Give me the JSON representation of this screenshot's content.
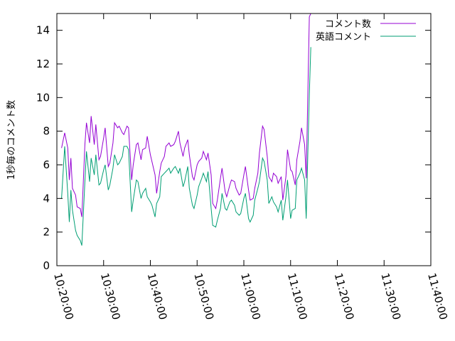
{
  "chart_data": {
    "type": "line",
    "title": "",
    "xlabel": "",
    "ylabel": "1秒毎のコメント数",
    "xlim": [
      "10:20:00",
      "11:40:00"
    ],
    "ylim": [
      0,
      15
    ],
    "x_ticks": [
      "10:20:00",
      "10:30:00",
      "10:40:00",
      "10:50:00",
      "11:00:00",
      "11:10:00",
      "11:20:00",
      "11:30:00",
      "11:40:00"
    ],
    "y_ticks": [
      0,
      2,
      4,
      6,
      8,
      10,
      12,
      14
    ],
    "grid": false,
    "legend_position": "top-right",
    "series": [
      {
        "name": "コメント数",
        "color": "#9400d3",
        "points": [
          [
            "10:21:00",
            7.0
          ],
          [
            "10:21:40",
            7.9
          ],
          [
            "10:22:20",
            7.0
          ],
          [
            "10:22:40",
            5.1
          ],
          [
            "10:23:00",
            6.4
          ],
          [
            "10:23:20",
            4.6
          ],
          [
            "10:24:00",
            4.2
          ],
          [
            "10:24:20",
            3.5
          ],
          [
            "10:25:00",
            3.4
          ],
          [
            "10:25:20",
            2.9
          ],
          [
            "10:26:00",
            7.2
          ],
          [
            "10:26:20",
            8.5
          ],
          [
            "10:27:00",
            7.3
          ],
          [
            "10:27:20",
            8.9
          ],
          [
            "10:28:00",
            7.2
          ],
          [
            "10:28:20",
            8.4
          ],
          [
            "10:29:00",
            6.3
          ],
          [
            "10:29:20",
            6.5
          ],
          [
            "10:30:00",
            7.6
          ],
          [
            "10:30:20",
            8.2
          ],
          [
            "10:31:00",
            5.9
          ],
          [
            "10:31:20",
            6.1
          ],
          [
            "10:32:00",
            7.3
          ],
          [
            "10:32:20",
            8.5
          ],
          [
            "10:33:00",
            8.2
          ],
          [
            "10:33:20",
            8.3
          ],
          [
            "10:34:00",
            7.9
          ],
          [
            "10:34:20",
            7.8
          ],
          [
            "10:35:00",
            8.3
          ],
          [
            "10:35:20",
            8.2
          ],
          [
            "10:36:00",
            5.1
          ],
          [
            "10:36:20",
            6.0
          ],
          [
            "10:37:00",
            7.2
          ],
          [
            "10:37:20",
            7.3
          ],
          [
            "10:38:00",
            6.3
          ],
          [
            "10:38:20",
            6.9
          ],
          [
            "10:39:00",
            7.0
          ],
          [
            "10:39:20",
            7.7
          ],
          [
            "10:40:00",
            6.6
          ],
          [
            "10:40:20",
            6.2
          ],
          [
            "10:41:00",
            5.4
          ],
          [
            "10:41:20",
            4.3
          ],
          [
            "10:42:00",
            5.6
          ],
          [
            "10:42:20",
            6.1
          ],
          [
            "10:43:00",
            6.5
          ],
          [
            "10:43:20",
            7.1
          ],
          [
            "10:44:00",
            7.3
          ],
          [
            "10:44:20",
            7.1
          ],
          [
            "10:45:00",
            7.2
          ],
          [
            "10:45:20",
            7.4
          ],
          [
            "10:46:00",
            8.0
          ],
          [
            "10:46:20",
            7.3
          ],
          [
            "10:47:00",
            6.5
          ],
          [
            "10:47:20",
            7.0
          ],
          [
            "10:48:00",
            7.5
          ],
          [
            "10:48:20",
            6.6
          ],
          [
            "10:49:00",
            5.3
          ],
          [
            "10:49:20",
            5.1
          ],
          [
            "10:50:00",
            6.0
          ],
          [
            "10:50:20",
            6.2
          ],
          [
            "10:51:00",
            6.4
          ],
          [
            "10:51:20",
            6.8
          ],
          [
            "10:52:00",
            6.3
          ],
          [
            "10:52:20",
            6.7
          ],
          [
            "10:53:00",
            5.4
          ],
          [
            "10:53:20",
            3.7
          ],
          [
            "10:54:00",
            3.4
          ],
          [
            "10:54:20",
            3.9
          ],
          [
            "10:55:00",
            5.2
          ],
          [
            "10:55:20",
            5.8
          ],
          [
            "10:56:00",
            4.4
          ],
          [
            "10:56:20",
            4.1
          ],
          [
            "10:57:00",
            4.8
          ],
          [
            "10:57:20",
            5.1
          ],
          [
            "10:58:00",
            5.0
          ],
          [
            "10:58:20",
            4.6
          ],
          [
            "10:59:00",
            4.2
          ],
          [
            "10:59:20",
            4.3
          ],
          [
            "11:00:00",
            5.4
          ],
          [
            "11:00:20",
            5.9
          ],
          [
            "11:01:00",
            4.5
          ],
          [
            "11:01:20",
            3.9
          ],
          [
            "11:02:00",
            4.0
          ],
          [
            "11:02:20",
            4.6
          ],
          [
            "11:03:00",
            5.5
          ],
          [
            "11:03:20",
            6.7
          ],
          [
            "11:04:00",
            8.3
          ],
          [
            "11:04:20",
            8.1
          ],
          [
            "11:05:00",
            6.5
          ],
          [
            "11:05:20",
            5.3
          ],
          [
            "11:06:00",
            5.0
          ],
          [
            "11:06:20",
            5.5
          ],
          [
            "11:07:00",
            5.3
          ],
          [
            "11:07:20",
            4.9
          ],
          [
            "11:08:00",
            5.3
          ],
          [
            "11:08:20",
            3.9
          ],
          [
            "11:09:00",
            5.3
          ],
          [
            "11:09:20",
            6.9
          ],
          [
            "11:10:00",
            5.7
          ],
          [
            "11:10:20",
            5.6
          ],
          [
            "11:11:00",
            4.8
          ],
          [
            "11:11:20",
            6.3
          ],
          [
            "11:12:00",
            7.4
          ],
          [
            "11:12:20",
            8.2
          ],
          [
            "11:13:00",
            7.2
          ],
          [
            "11:13:20",
            5.2
          ],
          [
            "11:14:00",
            14.8
          ],
          [
            "11:14:20",
            15.0
          ]
        ]
      },
      {
        "name": "英語コメント",
        "color": "#009e73",
        "points": [
          [
            "10:21:00",
            4.0
          ],
          [
            "10:21:40",
            7.1
          ],
          [
            "10:22:20",
            4.3
          ],
          [
            "10:22:40",
            2.6
          ],
          [
            "10:23:00",
            4.5
          ],
          [
            "10:23:20",
            3.3
          ],
          [
            "10:24:00",
            2.1
          ],
          [
            "10:24:20",
            1.8
          ],
          [
            "10:25:00",
            1.5
          ],
          [
            "10:25:20",
            1.2
          ],
          [
            "10:26:00",
            5.0
          ],
          [
            "10:26:20",
            6.8
          ],
          [
            "10:27:00",
            5.0
          ],
          [
            "10:27:20",
            6.4
          ],
          [
            "10:28:00",
            5.4
          ],
          [
            "10:28:20",
            6.6
          ],
          [
            "10:29:00",
            4.8
          ],
          [
            "10:29:20",
            4.9
          ],
          [
            "10:30:00",
            5.7
          ],
          [
            "10:30:20",
            6.0
          ],
          [
            "10:31:00",
            4.5
          ],
          [
            "10:31:20",
            4.8
          ],
          [
            "10:32:00",
            5.8
          ],
          [
            "10:32:20",
            6.6
          ],
          [
            "10:33:00",
            6.0
          ],
          [
            "10:33:20",
            6.1
          ],
          [
            "10:34:00",
            6.5
          ],
          [
            "10:34:20",
            7.1
          ],
          [
            "10:35:00",
            7.1
          ],
          [
            "10:35:20",
            6.9
          ],
          [
            "10:36:00",
            3.2
          ],
          [
            "10:36:20",
            3.9
          ],
          [
            "10:37:00",
            5.1
          ],
          [
            "10:37:20",
            5.0
          ],
          [
            "10:38:00",
            4.0
          ],
          [
            "10:38:20",
            4.3
          ],
          [
            "10:39:00",
            4.6
          ],
          [
            "10:39:20",
            4.1
          ],
          [
            "10:40:00",
            3.8
          ],
          [
            "10:40:20",
            3.6
          ],
          [
            "10:41:00",
            2.9
          ],
          [
            "10:41:20",
            3.7
          ],
          [
            "10:42:00",
            4.1
          ],
          [
            "10:42:20",
            5.3
          ],
          [
            "10:43:00",
            5.5
          ],
          [
            "10:43:20",
            5.6
          ],
          [
            "10:44:00",
            5.8
          ],
          [
            "10:44:20",
            5.5
          ],
          [
            "10:45:00",
            5.8
          ],
          [
            "10:45:20",
            5.9
          ],
          [
            "10:46:00",
            5.5
          ],
          [
            "10:46:20",
            5.8
          ],
          [
            "10:47:00",
            4.7
          ],
          [
            "10:47:20",
            5.0
          ],
          [
            "10:48:00",
            5.9
          ],
          [
            "10:48:20",
            4.6
          ],
          [
            "10:49:00",
            3.6
          ],
          [
            "10:49:20",
            3.4
          ],
          [
            "10:50:00",
            4.2
          ],
          [
            "10:50:20",
            4.7
          ],
          [
            "10:51:00",
            5.2
          ],
          [
            "10:51:20",
            5.5
          ],
          [
            "10:52:00",
            5.0
          ],
          [
            "10:52:20",
            5.6
          ],
          [
            "10:53:00",
            3.4
          ],
          [
            "10:53:20",
            2.4
          ],
          [
            "10:54:00",
            2.3
          ],
          [
            "10:54:20",
            2.7
          ],
          [
            "10:55:00",
            3.4
          ],
          [
            "10:55:20",
            4.3
          ],
          [
            "10:56:00",
            3.4
          ],
          [
            "10:56:20",
            3.3
          ],
          [
            "10:57:00",
            3.8
          ],
          [
            "10:57:20",
            3.9
          ],
          [
            "10:58:00",
            3.6
          ],
          [
            "10:58:20",
            3.2
          ],
          [
            "10:59:00",
            3.0
          ],
          [
            "10:59:20",
            3.1
          ],
          [
            "11:00:00",
            4.0
          ],
          [
            "11:00:20",
            4.3
          ],
          [
            "11:01:00",
            2.8
          ],
          [
            "11:01:20",
            2.6
          ],
          [
            "11:02:00",
            3.0
          ],
          [
            "11:02:20",
            3.9
          ],
          [
            "11:03:00",
            4.6
          ],
          [
            "11:03:20",
            5.0
          ],
          [
            "11:04:00",
            6.4
          ],
          [
            "11:04:20",
            6.2
          ],
          [
            "11:05:00",
            5.1
          ],
          [
            "11:05:20",
            3.7
          ],
          [
            "11:06:00",
            4.1
          ],
          [
            "11:06:20",
            3.8
          ],
          [
            "11:07:00",
            3.5
          ],
          [
            "11:07:20",
            3.2
          ],
          [
            "11:08:00",
            3.9
          ],
          [
            "11:08:20",
            2.7
          ],
          [
            "11:09:00",
            4.1
          ],
          [
            "11:09:20",
            5.1
          ],
          [
            "11:10:00",
            2.8
          ],
          [
            "11:10:20",
            3.3
          ],
          [
            "11:11:00",
            3.4
          ],
          [
            "11:11:20",
            5.1
          ],
          [
            "11:12:00",
            5.5
          ],
          [
            "11:12:20",
            5.8
          ],
          [
            "11:13:00",
            5.1
          ],
          [
            "11:13:20",
            2.8
          ],
          [
            "11:14:00",
            10.2
          ],
          [
            "11:14:20",
            13.0
          ]
        ]
      }
    ]
  }
}
